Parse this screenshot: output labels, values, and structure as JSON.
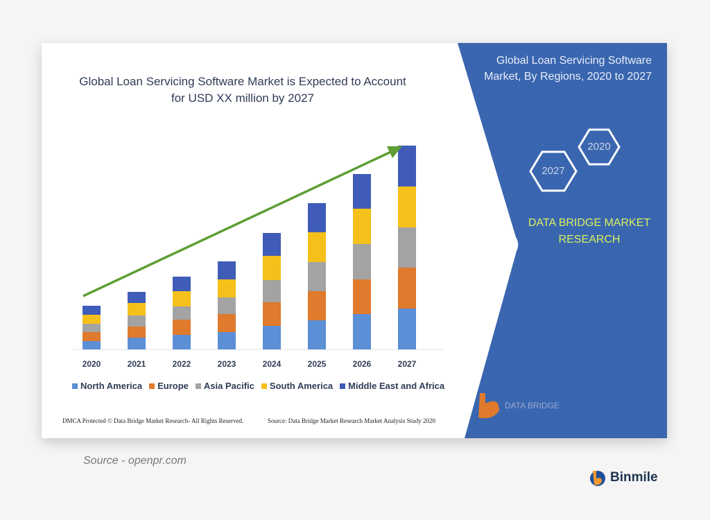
{
  "chart_data": {
    "type": "bar",
    "stacked": true,
    "title": "Global Loan Servicing Software Market is Expected to Account for USD XX million by 2027",
    "title_lines": [
      "Global Loan Servicing Software Market is Expected to Account",
      "for USD XX million by 2027"
    ],
    "categories": [
      "2020",
      "2021",
      "2022",
      "2023",
      "2024",
      "2025",
      "2026",
      "2027"
    ],
    "series": [
      {
        "name": "North America",
        "color": "#5b8fd6",
        "values": [
          12,
          17,
          21,
          25,
          34,
          42,
          51,
          59
        ]
      },
      {
        "name": "Europe",
        "color": "#e07a2c",
        "values": [
          13,
          16,
          22,
          26,
          34,
          42,
          50,
          59
        ]
      },
      {
        "name": "Asia Pacific",
        "color": "#a3a3a3",
        "values": [
          12,
          16,
          19,
          24,
          32,
          42,
          51,
          58
        ]
      },
      {
        "name": "South America",
        "color": "#f5c01a",
        "values": [
          13,
          18,
          22,
          26,
          35,
          43,
          51,
          59
        ]
      },
      {
        "name": "Middle East and Africa",
        "color": "#3f5cb8",
        "values": [
          13,
          16,
          21,
          26,
          33,
          42,
          50,
          59
        ]
      }
    ],
    "y_axis_shown": false,
    "grid": false,
    "legend_position": "bottom",
    "trend_arrow_color": "#5e9e35"
  },
  "panel": {
    "title_lines": [
      "Global Loan Servicing Software",
      "Market, By Regions, 2020 to 2027"
    ],
    "hex_labels": [
      "2020",
      "2027"
    ],
    "brand_lines": [
      "DATA BRIDGE MARKET",
      "RESEARCH"
    ],
    "logo_text": "DATA BRIDGE",
    "color": "#3a66b0"
  },
  "footer": {
    "left": "DMCA Protected © Data Bridge Market Research- All Rights Reserved.",
    "right": "Source: Data Bridge Market Research Market Analysis Study 2020"
  },
  "source": "Source - openpr.com",
  "brand": "Binmile"
}
